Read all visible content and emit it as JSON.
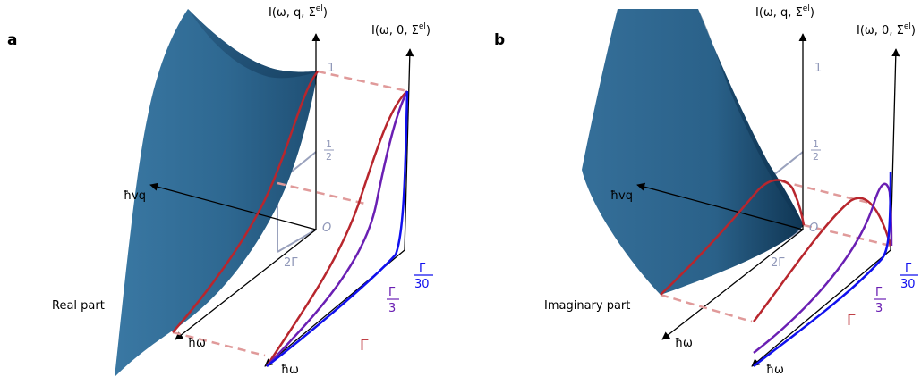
{
  "colors": {
    "surface": "#2f6690",
    "surface_dark": "#0f3553",
    "gamma": "#b8262d",
    "gamma3": "#6a1fb3",
    "gamma30": "#1010ee",
    "dashed": "#e09a9a",
    "grey": "#9aa2bd"
  },
  "panels": [
    {
      "letter": "a",
      "part_label": "Real part",
      "axis_top_3d": "I(ω, q, Σ",
      "axis_top_3d_sup": "el",
      "axis_top_2d": "I(ω, 0, Σ",
      "axis_top_2d_sup": "el",
      "axis_vq": "ħvq",
      "axis_w_3d": "ħω",
      "axis_w_2d": "ħω",
      "origin": "O",
      "tick_one": "1",
      "tick_half_num": "1",
      "tick_half_den": "2",
      "tick_2gamma": "2Γ",
      "legend_gamma": "Γ",
      "legend_gamma3_num": "Γ",
      "legend_gamma3_den": "3",
      "legend_gamma30_num": "Γ",
      "legend_gamma30_den": "30"
    },
    {
      "letter": "b",
      "part_label": "Imaginary part",
      "axis_top_3d": "I(ω, q, Σ",
      "axis_top_3d_sup": "el",
      "axis_top_2d": "I(ω, 0, Σ",
      "axis_top_2d_sup": "el",
      "axis_vq": "ħvq",
      "axis_w_3d": "ħω",
      "axis_w_2d": "ħω",
      "origin": "O",
      "tick_one": "1",
      "tick_half_num": "1",
      "tick_half_den": "2",
      "tick_2gamma": "2Γ",
      "legend_gamma": "Γ",
      "legend_gamma3_num": "Γ",
      "legend_gamma3_den": "3",
      "legend_gamma30_num": "Γ",
      "legend_gamma30_den": "30"
    }
  ]
}
